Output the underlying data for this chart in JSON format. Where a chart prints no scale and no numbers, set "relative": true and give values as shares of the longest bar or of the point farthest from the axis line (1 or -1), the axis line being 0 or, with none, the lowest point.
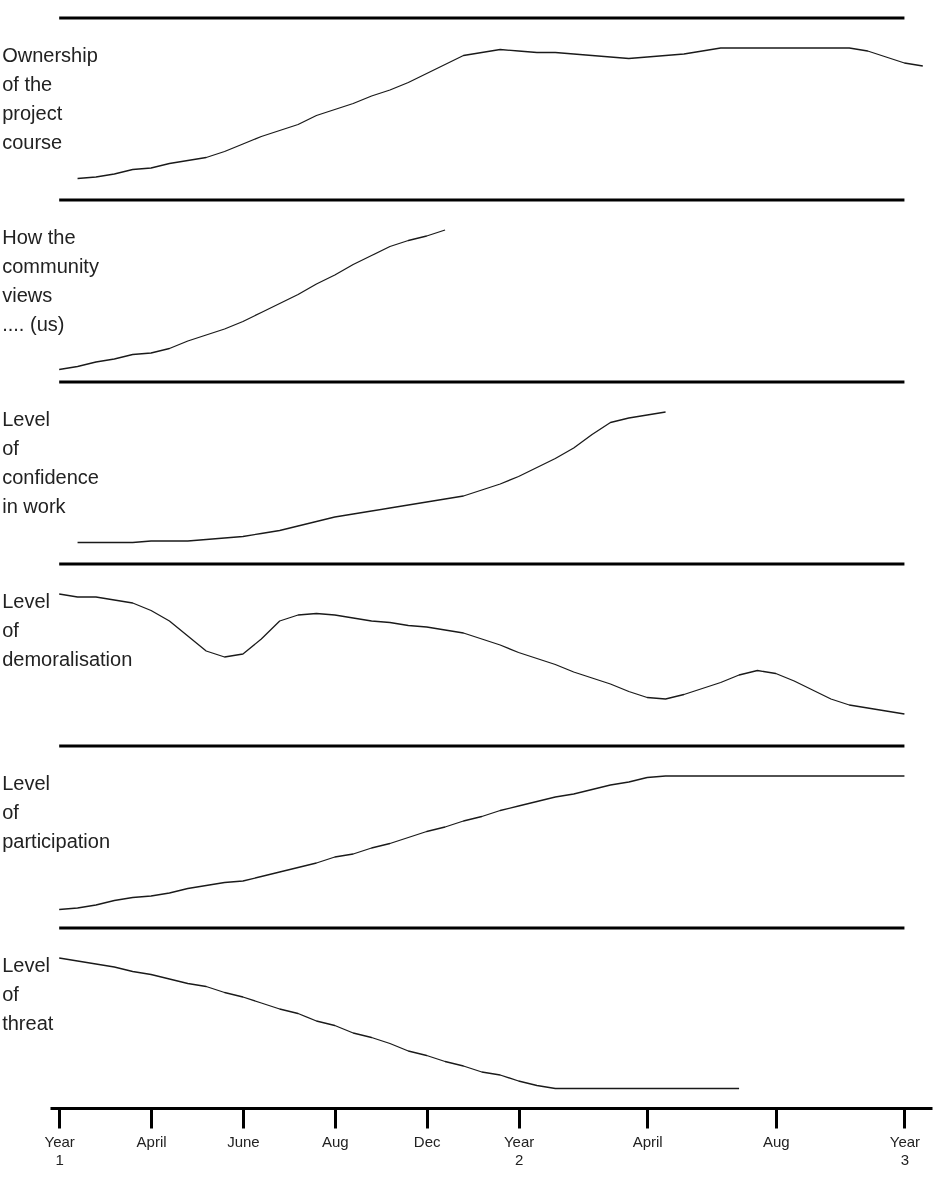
{
  "chart_data": [
    {
      "type": "line",
      "relative": true,
      "title": "Ownership\nof the\nproject\ncourse",
      "categories": [
        null,
        null,
        null,
        null,
        null,
        null,
        null,
        null,
        null,
        null,
        null,
        null,
        null,
        null,
        null,
        null,
        null,
        null,
        null,
        null,
        null,
        null,
        null,
        null,
        null,
        null,
        null,
        null,
        null,
        null,
        null,
        null,
        null,
        null,
        null,
        null,
        null,
        null,
        null,
        null,
        null,
        null,
        null,
        null,
        null,
        null,
        null,
        null
      ],
      "tick_labels": false,
      "series": [
        {
          "color": "#1a1a1a",
          "values": [
            null,
            0.13,
            0.14,
            0.16,
            0.19,
            0.2,
            0.23,
            0.25,
            0.27,
            0.31,
            0.36,
            0.41,
            0.45,
            0.49,
            0.55,
            0.59,
            0.63,
            0.68,
            0.72,
            0.77,
            0.83,
            0.89,
            0.95,
            0.97,
            0.99,
            0.98,
            0.97,
            0.97,
            0.96,
            0.95,
            0.94,
            0.93,
            0.94,
            0.95,
            0.96,
            0.98,
            1,
            1,
            1,
            1,
            1,
            1,
            1,
            1,
            0.98,
            0.94,
            0.9,
            0.88
          ]
        }
      ]
    },
    {
      "type": "line",
      "relative": true,
      "title": "How the\ncommunity\nviews\n.... (us)",
      "categories": [
        null,
        null,
        null,
        null,
        null,
        null,
        null,
        null,
        null,
        null,
        null,
        null,
        null,
        null,
        null,
        null,
        null,
        null,
        null,
        null,
        null,
        null,
        null,
        null,
        null,
        null,
        null,
        null,
        null,
        null,
        null,
        null,
        null,
        null,
        null,
        null,
        null,
        null,
        null,
        null,
        null,
        null,
        null,
        null,
        null,
        null,
        null,
        null
      ],
      "tick_labels": false,
      "series": [
        {
          "color": "#1a1a1a",
          "values": [
            0.07,
            0.09,
            0.12,
            0.14,
            0.17,
            0.18,
            0.21,
            0.26,
            0.3,
            0.34,
            0.39,
            0.45,
            0.51,
            0.57,
            0.64,
            0.7,
            0.77,
            0.83,
            0.89,
            0.93,
            0.96,
            1,
            null,
            null,
            null,
            null,
            null,
            null,
            null,
            null,
            null,
            null,
            null,
            null,
            null,
            null,
            null,
            null,
            null,
            null,
            null,
            null,
            null,
            null,
            null,
            null,
            null,
            null
          ]
        }
      ]
    },
    {
      "type": "line",
      "relative": true,
      "title": "Level\nof\nconfidence\nin work",
      "categories": [
        null,
        null,
        null,
        null,
        null,
        null,
        null,
        null,
        null,
        null,
        null,
        null,
        null,
        null,
        null,
        null,
        null,
        null,
        null,
        null,
        null,
        null,
        null,
        null,
        null,
        null,
        null,
        null,
        null,
        null,
        null,
        null,
        null,
        null,
        null,
        null,
        null,
        null,
        null,
        null,
        null,
        null,
        null,
        null,
        null,
        null,
        null,
        null
      ],
      "tick_labels": false,
      "series": [
        {
          "color": "#1a1a1a",
          "values": [
            null,
            0.13,
            0.13,
            0.13,
            0.13,
            0.14,
            0.14,
            0.14,
            0.15,
            0.16,
            0.17,
            0.19,
            0.21,
            0.24,
            0.27,
            0.3,
            0.32,
            0.34,
            0.36,
            0.38,
            0.4,
            0.42,
            0.44,
            0.48,
            0.52,
            0.57,
            0.63,
            0.69,
            0.76,
            0.85,
            0.93,
            0.96,
            0.98,
            1,
            null,
            null,
            null,
            null,
            null,
            null,
            null,
            null,
            null,
            null,
            null,
            null,
            null,
            null
          ]
        }
      ]
    },
    {
      "type": "line",
      "relative": true,
      "title": "Level\nof\ndemoralisation",
      "categories": [
        null,
        null,
        null,
        null,
        null,
        null,
        null,
        null,
        null,
        null,
        null,
        null,
        null,
        null,
        null,
        null,
        null,
        null,
        null,
        null,
        null,
        null,
        null,
        null,
        null,
        null,
        null,
        null,
        null,
        null,
        null,
        null,
        null,
        null,
        null,
        null,
        null,
        null,
        null,
        null,
        null,
        null,
        null,
        null,
        null,
        null,
        null,
        null
      ],
      "tick_labels": false,
      "series": [
        {
          "color": "#1a1a1a",
          "values": [
            1,
            0.98,
            0.98,
            0.96,
            0.94,
            0.89,
            0.82,
            0.72,
            0.62,
            0.58,
            0.6,
            0.7,
            0.82,
            0.86,
            0.87,
            0.86,
            0.84,
            0.82,
            0.81,
            0.79,
            0.78,
            0.76,
            0.74,
            0.7,
            0.66,
            0.61,
            0.57,
            0.53,
            0.48,
            0.44,
            0.4,
            0.35,
            0.31,
            0.3,
            0.33,
            0.37,
            0.41,
            0.46,
            0.49,
            0.47,
            0.42,
            0.36,
            0.3,
            0.26,
            0.24,
            0.22,
            0.2,
            null
          ]
        }
      ]
    },
    {
      "type": "line",
      "relative": true,
      "title": "Level\nof\nparticipation",
      "categories": [
        null,
        null,
        null,
        null,
        null,
        null,
        null,
        null,
        null,
        null,
        null,
        null,
        null,
        null,
        null,
        null,
        null,
        null,
        null,
        null,
        null,
        null,
        null,
        null,
        null,
        null,
        null,
        null,
        null,
        null,
        null,
        null,
        null,
        null,
        null,
        null,
        null,
        null,
        null,
        null,
        null,
        null,
        null,
        null,
        null,
        null,
        null,
        null
      ],
      "tick_labels": false,
      "series": [
        {
          "color": "#1a1a1a",
          "values": [
            0.11,
            0.12,
            0.14,
            0.17,
            0.19,
            0.2,
            0.22,
            0.25,
            0.27,
            0.29,
            0.3,
            0.33,
            0.36,
            0.39,
            0.42,
            0.46,
            0.48,
            0.52,
            0.55,
            0.59,
            0.63,
            0.66,
            0.7,
            0.73,
            0.77,
            0.8,
            0.83,
            0.86,
            0.88,
            0.91,
            0.94,
            0.96,
            0.99,
            1,
            1,
            1,
            1,
            1,
            1,
            1,
            1,
            1,
            1,
            1,
            1,
            1,
            1,
            null
          ]
        }
      ]
    },
    {
      "type": "line",
      "relative": true,
      "title": "Level\nof\nthreat",
      "categories": [
        "Year 1",
        null,
        null,
        null,
        null,
        "April",
        null,
        null,
        null,
        null,
        "June",
        null,
        null,
        null,
        null,
        "Aug",
        null,
        null,
        null,
        null,
        "Dec",
        null,
        null,
        null,
        null,
        "Year 2",
        null,
        null,
        null,
        null,
        null,
        null,
        "April",
        null,
        null,
        null,
        null,
        null,
        null,
        "Aug",
        null,
        null,
        null,
        null,
        null,
        null,
        "Year 3",
        null
      ],
      "tick_labels": "x",
      "series": [
        {
          "color": "#1a1a1a",
          "values": [
            1,
            0.98,
            0.96,
            0.94,
            0.91,
            0.89,
            0.86,
            0.83,
            0.81,
            0.77,
            0.74,
            0.7,
            0.66,
            0.63,
            0.58,
            0.55,
            0.5,
            0.47,
            0.43,
            0.38,
            0.35,
            0.31,
            0.28,
            0.24,
            0.22,
            0.18,
            0.15,
            0.13,
            0.13,
            0.13,
            0.13,
            0.13,
            0.13,
            0.13,
            0.13,
            0.13,
            0.13,
            0.13,
            null,
            null,
            null,
            null,
            null,
            null,
            null,
            null,
            null,
            null
          ]
        }
      ]
    }
  ]
}
